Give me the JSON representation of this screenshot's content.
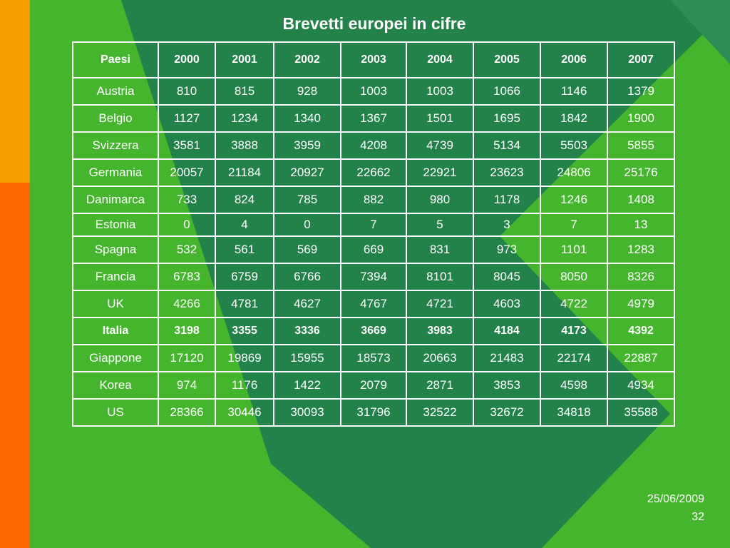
{
  "slide": {
    "title": "Brevetti europei in cifre",
    "date": "25/06/2009",
    "page_number": "32"
  },
  "colors": {
    "background_green": "#45b52e",
    "dark_green": "#22824a",
    "stripe_top": "#f5a000",
    "stripe_bottom": "#ff6a00"
  },
  "table": {
    "headers": [
      "Paesi",
      "2000",
      "2001",
      "2002",
      "2003",
      "2004",
      "2005",
      "2006",
      "2007"
    ],
    "rows": [
      [
        "Austria",
        "810",
        "815",
        "928",
        "1003",
        "1003",
        "1066",
        "1146",
        "1379"
      ],
      [
        "Belgio",
        "1127",
        "1234",
        "1340",
        "1367",
        "1501",
        "1695",
        "1842",
        "1900"
      ],
      [
        "Svizzera",
        "3581",
        "3888",
        "3959",
        "4208",
        "4739",
        "5134",
        "5503",
        "5855"
      ],
      [
        "Germania",
        "20057",
        "21184",
        "20927",
        "22662",
        "22921",
        "23623",
        "24806",
        "25176"
      ],
      [
        "Danimarca",
        "733",
        "824",
        "785",
        "882",
        "980",
        "1178",
        "1246",
        "1408"
      ],
      [
        "Estonia",
        "0",
        "4",
        "0",
        "7",
        "5",
        "3",
        "7",
        "13"
      ],
      [
        "Spagna",
        "532",
        "561",
        "569",
        "669",
        "831",
        "973",
        "1101",
        "1283"
      ],
      [
        "Francia",
        "6783",
        "6759",
        "6766",
        "7394",
        "8101",
        "8045",
        "8050",
        "8326"
      ],
      [
        "UK",
        "4266",
        "4781",
        "4627",
        "4767",
        "4721",
        "4603",
        "4722",
        "4979"
      ],
      [
        "Italia",
        "3198",
        "3355",
        "3336",
        "3669",
        "3983",
        "4184",
        "4173",
        "4392"
      ],
      [
        "Giappone",
        "17120",
        "19869",
        "15955",
        "18573",
        "20663",
        "21483",
        "22174",
        "22887"
      ],
      [
        "Korea",
        "974",
        "1176",
        "1422",
        "2079",
        "2871",
        "3853",
        "4598",
        "4934"
      ],
      [
        "US",
        "28366",
        "30446",
        "30093",
        "31796",
        "32522",
        "32672",
        "34818",
        "35588"
      ]
    ]
  }
}
